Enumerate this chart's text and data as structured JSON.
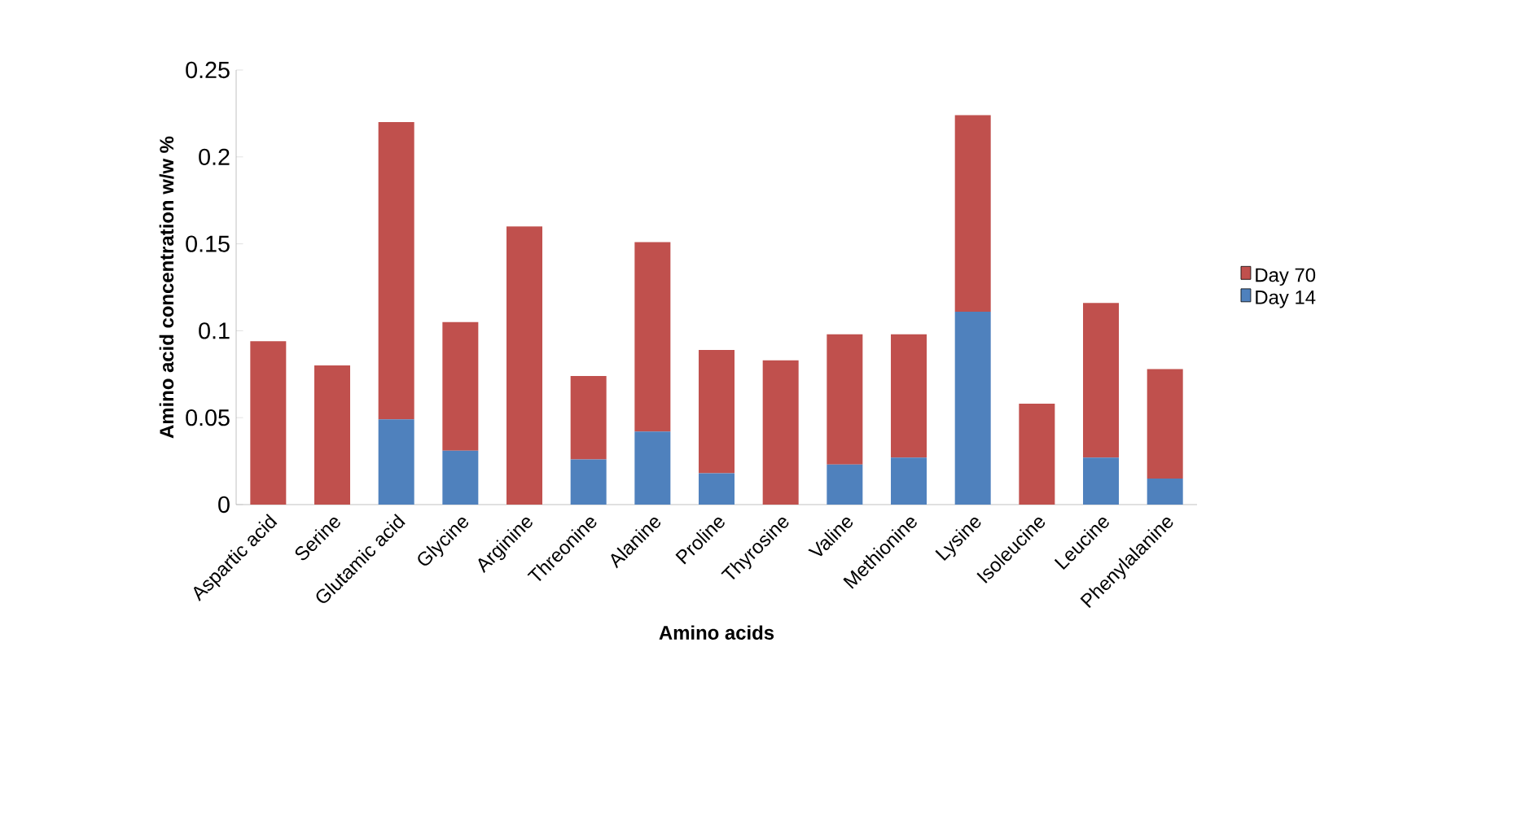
{
  "chart_data": {
    "type": "bar",
    "stacked": true,
    "xlabel": "Amino acids",
    "ylabel": "Amino acid concentration w/w %",
    "categories": [
      "Aspartic acid",
      "Serine",
      "Glutamic acid",
      "Glycine",
      "Arginine",
      "Threonine",
      "Alanine",
      "Proline",
      "Thyrosine",
      "Valine",
      "Methionine",
      "Lysine",
      "Isoleucine",
      "Leucine",
      "Phenylalanine"
    ],
    "series": [
      {
        "name": "Day 14",
        "color": "#4f81bd",
        "values": [
          0,
          0,
          0.049,
          0.031,
          0,
          0.026,
          0.042,
          0.018,
          0,
          0.023,
          0.027,
          0.111,
          0,
          0.027,
          0.015
        ]
      },
      {
        "name": "Day 70",
        "color": "#c0504d",
        "values": [
          0.094,
          0.08,
          0.171,
          0.074,
          0.16,
          0.048,
          0.109,
          0.071,
          0.083,
          0.075,
          0.071,
          0.113,
          0.058,
          0.089,
          0.063
        ]
      }
    ],
    "ylim": [
      0,
      0.25
    ],
    "yticks": [
      0,
      0.05,
      0.1,
      0.15,
      0.2,
      0.25
    ],
    "grid": false,
    "legend": "right"
  }
}
